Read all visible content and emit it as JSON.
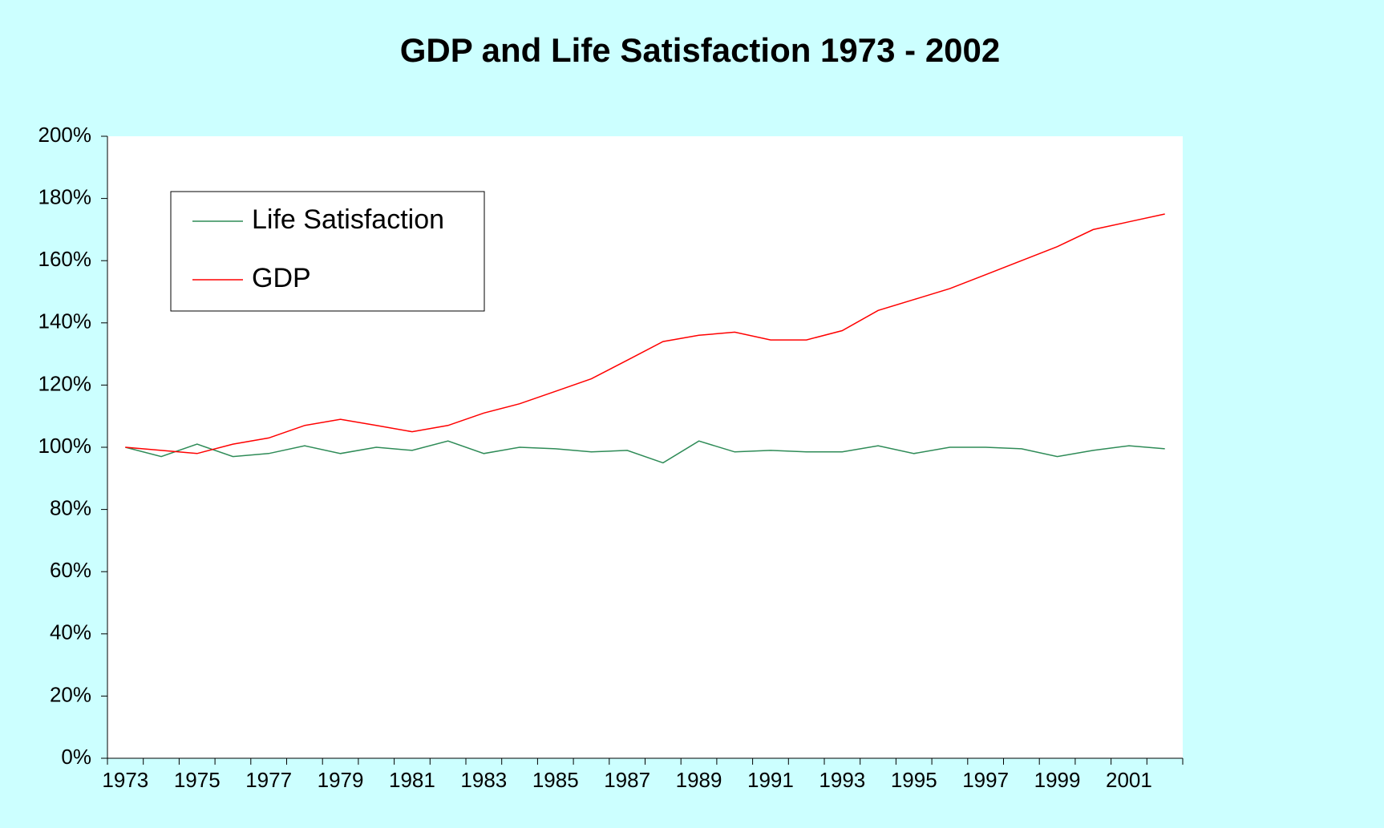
{
  "chart_data": {
    "type": "line",
    "title": "GDP and Life Satisfaction 1973 - 2002",
    "categories": [
      "1973",
      null,
      "1975",
      null,
      "1977",
      null,
      "1979",
      null,
      "1981",
      null,
      "1983",
      null,
      "1985",
      null,
      "1987",
      null,
      "1989",
      null,
      "1991",
      null,
      "1993",
      null,
      "1995",
      null,
      "1997",
      null,
      "1999",
      null,
      "2001",
      null
    ],
    "series": [
      {
        "name": "Life Satisfaction",
        "color": "#2e8b57",
        "values": [
          100,
          97,
          101,
          97,
          98,
          100.5,
          98,
          100,
          99,
          102,
          98,
          100,
          99.5,
          98.5,
          99,
          95,
          102,
          98.5,
          99,
          98.5,
          98.5,
          100.5,
          98,
          100,
          100,
          99.5,
          97,
          99,
          100.5,
          99.5
        ]
      },
      {
        "name": "GDP",
        "color": "#ff0000",
        "values": [
          100,
          99,
          98,
          101,
          103,
          107,
          109,
          107,
          105,
          107,
          111,
          114,
          118,
          122,
          128,
          134,
          136,
          137,
          134.5,
          134.5,
          137.5,
          144,
          147.5,
          151,
          155.5,
          160,
          164.5,
          170,
          172.5,
          175
        ]
      }
    ],
    "ylim": [
      0,
      200
    ],
    "yticks": [
      {
        "value": 0,
        "label": "0%"
      },
      {
        "value": 20,
        "label": "20%"
      },
      {
        "value": 40,
        "label": "40%"
      },
      {
        "value": 60,
        "label": "60%"
      },
      {
        "value": 80,
        "label": "80%"
      },
      {
        "value": 100,
        "label": "100%"
      },
      {
        "value": 120,
        "label": "120%"
      },
      {
        "value": 140,
        "label": "140%"
      },
      {
        "value": 160,
        "label": "160%"
      },
      {
        "value": 180,
        "label": "180%"
      },
      {
        "value": 200,
        "label": "200%"
      }
    ],
    "grid": false,
    "legend": "upper left"
  }
}
